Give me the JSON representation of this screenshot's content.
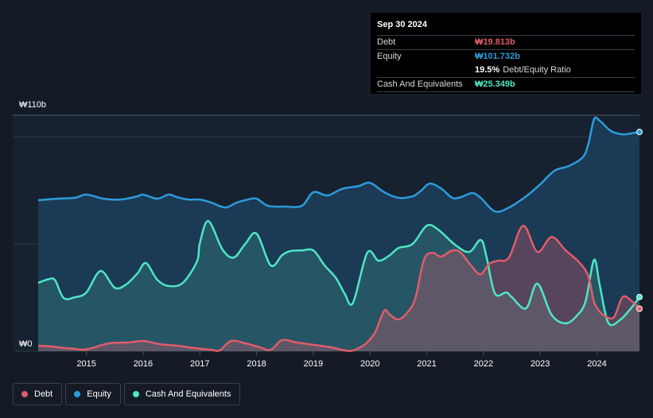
{
  "tooltip": {
    "date": "Sep 30 2024",
    "rows": [
      {
        "label": "Debt",
        "value": "₩19.813b",
        "color": "#e05c6a"
      },
      {
        "label": "Equity",
        "value": "₩101.732b",
        "color": "#2d9cdb"
      },
      {
        "label": "",
        "value": "19.5%",
        "suffix": "Debt/Equity Ratio",
        "color": "#ffffff"
      },
      {
        "label": "Cash And Equivalents",
        "value": "₩25.349b",
        "color": "#4ee6c4"
      }
    ]
  },
  "legend": {
    "items": [
      {
        "label": "Debt",
        "color": "#e05c6a"
      },
      {
        "label": "Equity",
        "color": "#2d9cdb"
      },
      {
        "label": "Cash And Equivalents",
        "color": "#4ee6c4"
      }
    ]
  },
  "chart_data": {
    "type": "area",
    "y_top_label": "₩110b",
    "y_bottom_label": "₩0",
    "ylim": [
      0,
      110
    ],
    "xlim": [
      2014.15,
      2024.75
    ],
    "x_ticks": [
      2015,
      2016,
      2017,
      2018,
      2019,
      2020,
      2021,
      2022,
      2023,
      2024
    ],
    "x_tick_labels": [
      "2015",
      "2016",
      "2017",
      "2018",
      "2019",
      "2020",
      "2021",
      "2022",
      "2023",
      "2024"
    ],
    "grid": true,
    "series": [
      {
        "name": "Equity",
        "color": "#2d9cdb",
        "points": [
          [
            2014.15,
            70.4
          ],
          [
            2014.5,
            71.1
          ],
          [
            2014.8,
            71.5
          ],
          [
            2015.0,
            73.0
          ],
          [
            2015.3,
            71.1
          ],
          [
            2015.6,
            70.7
          ],
          [
            2015.9,
            72.2
          ],
          [
            2016.0,
            73.0
          ],
          [
            2016.25,
            71.1
          ],
          [
            2016.45,
            73.0
          ],
          [
            2016.6,
            71.8
          ],
          [
            2016.8,
            70.7
          ],
          [
            2017.0,
            70.7
          ],
          [
            2017.2,
            69.3
          ],
          [
            2017.45,
            67.0
          ],
          [
            2017.65,
            69.3
          ],
          [
            2017.85,
            70.7
          ],
          [
            2018.0,
            71.1
          ],
          [
            2018.2,
            67.8
          ],
          [
            2018.5,
            67.4
          ],
          [
            2018.8,
            67.8
          ],
          [
            2019.0,
            74.1
          ],
          [
            2019.25,
            72.6
          ],
          [
            2019.5,
            75.6
          ],
          [
            2019.8,
            77.0
          ],
          [
            2020.0,
            78.5
          ],
          [
            2020.25,
            74.1
          ],
          [
            2020.5,
            71.5
          ],
          [
            2020.75,
            72.2
          ],
          [
            2020.9,
            74.8
          ],
          [
            2021.05,
            78.1
          ],
          [
            2021.25,
            75.9
          ],
          [
            2021.45,
            71.5
          ],
          [
            2021.6,
            71.8
          ],
          [
            2021.8,
            73.7
          ],
          [
            2021.95,
            71.5
          ],
          [
            2022.2,
            65.2
          ],
          [
            2022.45,
            67.0
          ],
          [
            2022.75,
            72.2
          ],
          [
            2023.0,
            77.8
          ],
          [
            2023.25,
            84.1
          ],
          [
            2023.5,
            86.3
          ],
          [
            2023.75,
            90.4
          ],
          [
            2023.85,
            96.7
          ],
          [
            2023.95,
            108.2
          ],
          [
            2024.05,
            107.4
          ],
          [
            2024.25,
            102.6
          ],
          [
            2024.45,
            101.1
          ],
          [
            2024.6,
            101.5
          ],
          [
            2024.75,
            102.2
          ]
        ]
      },
      {
        "name": "Cash And Equivalents",
        "color": "#4ee6c4",
        "points": [
          [
            2014.15,
            31.9
          ],
          [
            2014.35,
            33.7
          ],
          [
            2014.45,
            33.0
          ],
          [
            2014.6,
            24.8
          ],
          [
            2014.8,
            25.2
          ],
          [
            2015.0,
            27.4
          ],
          [
            2015.25,
            37.4
          ],
          [
            2015.5,
            29.6
          ],
          [
            2015.7,
            31.1
          ],
          [
            2015.9,
            36.3
          ],
          [
            2016.05,
            41.1
          ],
          [
            2016.25,
            33.3
          ],
          [
            2016.45,
            30.4
          ],
          [
            2016.7,
            31.9
          ],
          [
            2016.95,
            41.9
          ],
          [
            2017.0,
            50.4
          ],
          [
            2017.15,
            60.7
          ],
          [
            2017.4,
            47.4
          ],
          [
            2017.6,
            43.7
          ],
          [
            2017.8,
            50.0
          ],
          [
            2018.0,
            54.8
          ],
          [
            2018.25,
            40.0
          ],
          [
            2018.45,
            44.8
          ],
          [
            2018.6,
            46.7
          ],
          [
            2018.8,
            47.0
          ],
          [
            2019.0,
            47.0
          ],
          [
            2019.2,
            40.0
          ],
          [
            2019.4,
            34.1
          ],
          [
            2019.55,
            27.0
          ],
          [
            2019.7,
            22.6
          ],
          [
            2019.95,
            45.9
          ],
          [
            2020.15,
            42.2
          ],
          [
            2020.35,
            44.8
          ],
          [
            2020.5,
            48.1
          ],
          [
            2020.75,
            50.0
          ],
          [
            2021.0,
            58.5
          ],
          [
            2021.2,
            56.7
          ],
          [
            2021.5,
            49.6
          ],
          [
            2021.75,
            46.3
          ],
          [
            2021.95,
            51.9
          ],
          [
            2022.05,
            44.4
          ],
          [
            2022.2,
            27.0
          ],
          [
            2022.4,
            27.4
          ],
          [
            2022.5,
            25.2
          ],
          [
            2022.75,
            20.0
          ],
          [
            2022.95,
            31.5
          ],
          [
            2023.2,
            17.0
          ],
          [
            2023.45,
            13.0
          ],
          [
            2023.65,
            16.7
          ],
          [
            2023.8,
            23.3
          ],
          [
            2023.95,
            42.6
          ],
          [
            2024.05,
            30.7
          ],
          [
            2024.2,
            13.3
          ],
          [
            2024.4,
            14.4
          ],
          [
            2024.6,
            20.0
          ],
          [
            2024.75,
            25.3
          ]
        ]
      },
      {
        "name": "Debt",
        "color": "#e05c6a",
        "points": [
          [
            2014.15,
            2.6
          ],
          [
            2014.4,
            2.2
          ],
          [
            2014.6,
            1.5
          ],
          [
            2014.8,
            1.1
          ],
          [
            2014.95,
            0.7
          ],
          [
            2015.1,
            1.5
          ],
          [
            2015.4,
            3.7
          ],
          [
            2015.75,
            4.1
          ],
          [
            2016.0,
            4.8
          ],
          [
            2016.3,
            3.3
          ],
          [
            2016.6,
            2.6
          ],
          [
            2016.9,
            1.5
          ],
          [
            2017.2,
            0.7
          ],
          [
            2017.35,
            0.4
          ],
          [
            2017.55,
            4.8
          ],
          [
            2017.8,
            3.7
          ],
          [
            2018.05,
            1.9
          ],
          [
            2018.25,
            0.7
          ],
          [
            2018.45,
            5.2
          ],
          [
            2018.7,
            4.1
          ],
          [
            2019.0,
            3.0
          ],
          [
            2019.3,
            1.9
          ],
          [
            2019.55,
            0.4
          ],
          [
            2019.7,
            0.4
          ],
          [
            2019.9,
            3.0
          ],
          [
            2020.0,
            5.6
          ],
          [
            2020.1,
            9.3
          ],
          [
            2020.25,
            18.9
          ],
          [
            2020.35,
            17.0
          ],
          [
            2020.5,
            14.8
          ],
          [
            2020.65,
            17.8
          ],
          [
            2020.8,
            24.8
          ],
          [
            2020.95,
            42.6
          ],
          [
            2021.1,
            45.9
          ],
          [
            2021.25,
            44.1
          ],
          [
            2021.45,
            47.0
          ],
          [
            2021.6,
            45.9
          ],
          [
            2021.8,
            39.3
          ],
          [
            2021.95,
            35.9
          ],
          [
            2022.1,
            40.7
          ],
          [
            2022.25,
            42.2
          ],
          [
            2022.45,
            43.7
          ],
          [
            2022.7,
            58.5
          ],
          [
            2022.95,
            46.3
          ],
          [
            2023.2,
            53.3
          ],
          [
            2023.45,
            47.0
          ],
          [
            2023.7,
            41.1
          ],
          [
            2023.85,
            34.8
          ],
          [
            2023.95,
            23.0
          ],
          [
            2024.05,
            18.5
          ],
          [
            2024.15,
            16.3
          ],
          [
            2024.3,
            15.9
          ],
          [
            2024.45,
            25.2
          ],
          [
            2024.6,
            23.7
          ],
          [
            2024.75,
            19.8
          ]
        ]
      }
    ]
  }
}
